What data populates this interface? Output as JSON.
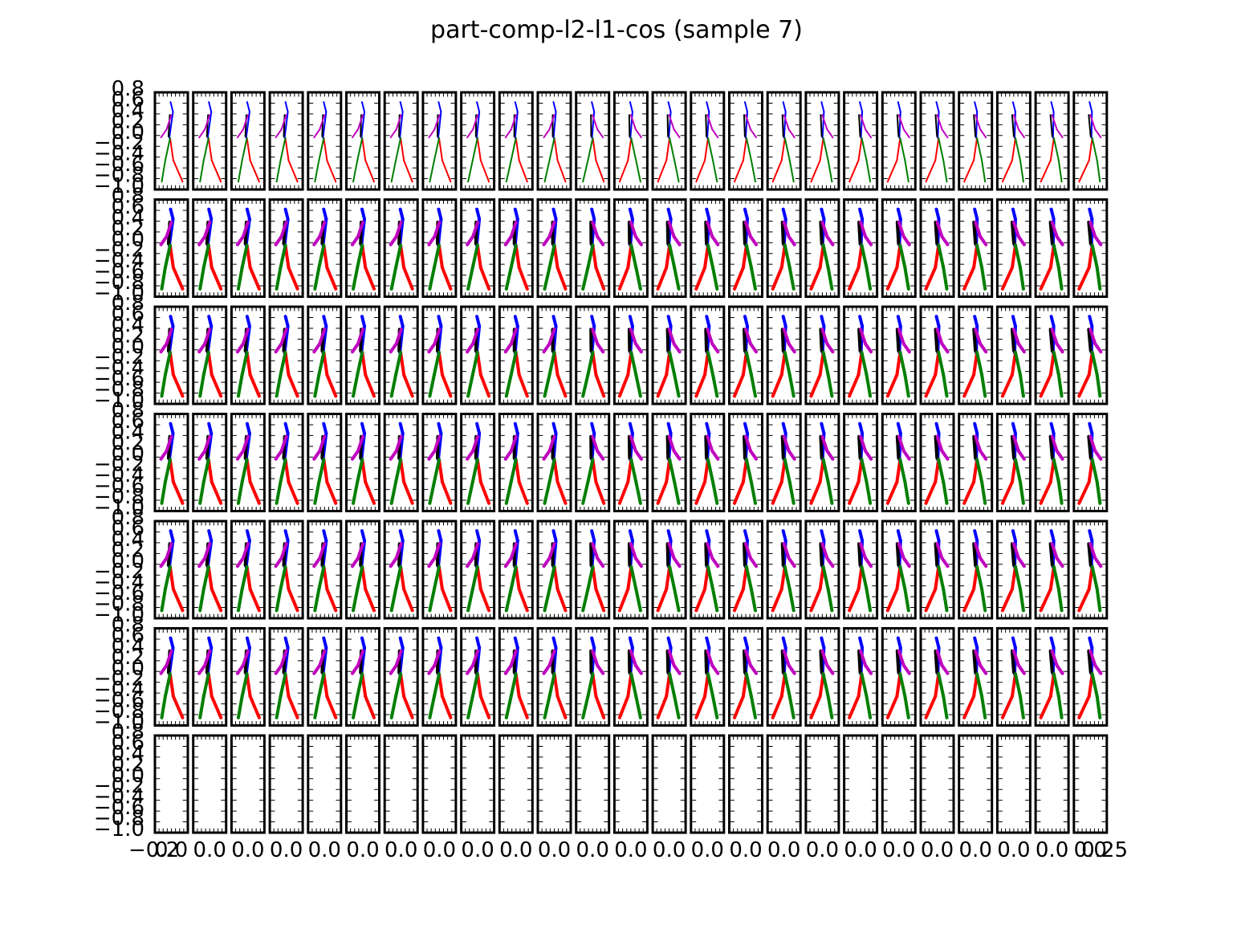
{
  "title": "part-comp-l2-l1-cos (sample 7)",
  "colors": {
    "background": "#ffffff",
    "axes": "#000000",
    "torso": "#000000",
    "spine_head": "#0000ff",
    "arm": "#bf00bf",
    "leg_a": "#ff0000",
    "leg_b": "#007f00"
  },
  "chart_data": {
    "type": "scatter",
    "description_kind": "grid of small-multiple stick-figure pose plots",
    "grid": {
      "rows": 7,
      "cols": 25,
      "empty_rows": [
        6
      ]
    },
    "title": "part-comp-l2-l1-cos (sample 7)",
    "xlabel": "",
    "ylabel": "",
    "ylim": [
      -1.0,
      0.8
    ],
    "y_tick_labels": [
      "0.8",
      "0.6",
      "0.4",
      "0.2",
      "0.0",
      "−0.2",
      "−0.4",
      "−0.6",
      "−0.8",
      "−1.0"
    ],
    "bottom_row_y_tick_labels": [
      "0.8",
      "0.6",
      "0.4",
      "0.2",
      "0.0",
      "−0.2",
      "−0.4",
      "−0.6",
      "−0.8",
      "−1.0"
    ],
    "x_tick_labels_visible_ends": [
      "−0.2",
      "0.25"
    ],
    "series": [
      {
        "name": "",
        "color": "#0000ff"
      },
      {
        "name": "",
        "color": "#000000"
      },
      {
        "name": "",
        "color": "#bf00bf"
      },
      {
        "name": "",
        "color": "#ff0000"
      },
      {
        "name": "",
        "color": "#007f00"
      }
    ],
    "grid_on": false,
    "legend": "none"
  }
}
